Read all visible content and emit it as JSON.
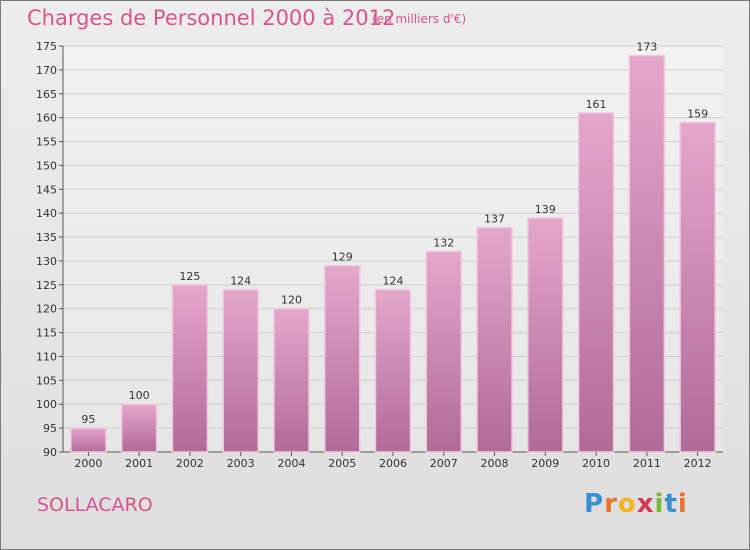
{
  "title": "Charges de Personnel 2000 à 2012",
  "subtitle": "(en milliers d'€)",
  "commune": "SOLLACARO",
  "logo": {
    "letters": [
      "P",
      "r",
      "o",
      "x",
      "i",
      "t",
      "i"
    ],
    "colors": [
      "#3a8fd0",
      "#e8732c",
      "#f3b51c",
      "#d33a4c",
      "#7ab83a",
      "#3a8fd0",
      "#e8732c"
    ]
  },
  "colors": {
    "accent": "#d6548f",
    "bar_top": "#e5a6cc",
    "bar_bottom": "#b06b97",
    "bar_edge": "#f0c8df"
  },
  "chart_data": {
    "type": "bar",
    "title": "Charges de Personnel 2000 à 2012",
    "subtitle": "(en milliers d'€)",
    "categories": [
      "2000",
      "2001",
      "2002",
      "2003",
      "2004",
      "2005",
      "2006",
      "2007",
      "2008",
      "2009",
      "2010",
      "2011",
      "2012"
    ],
    "values": [
      95,
      100,
      125,
      124,
      120,
      129,
      124,
      132,
      137,
      139,
      161,
      173,
      159
    ],
    "data_labels": [
      "95",
      "100",
      "125",
      "124",
      "120",
      "129",
      "124",
      "132",
      "137",
      "139",
      "161",
      "173",
      "159"
    ],
    "ylim": [
      90,
      175
    ],
    "yticks": [
      "90",
      "95",
      "100",
      "105",
      "110",
      "115",
      "120",
      "125",
      "130",
      "135",
      "140",
      "145",
      "150",
      "155",
      "160",
      "165",
      "170",
      "175"
    ],
    "grid": true,
    "legend": "none"
  }
}
